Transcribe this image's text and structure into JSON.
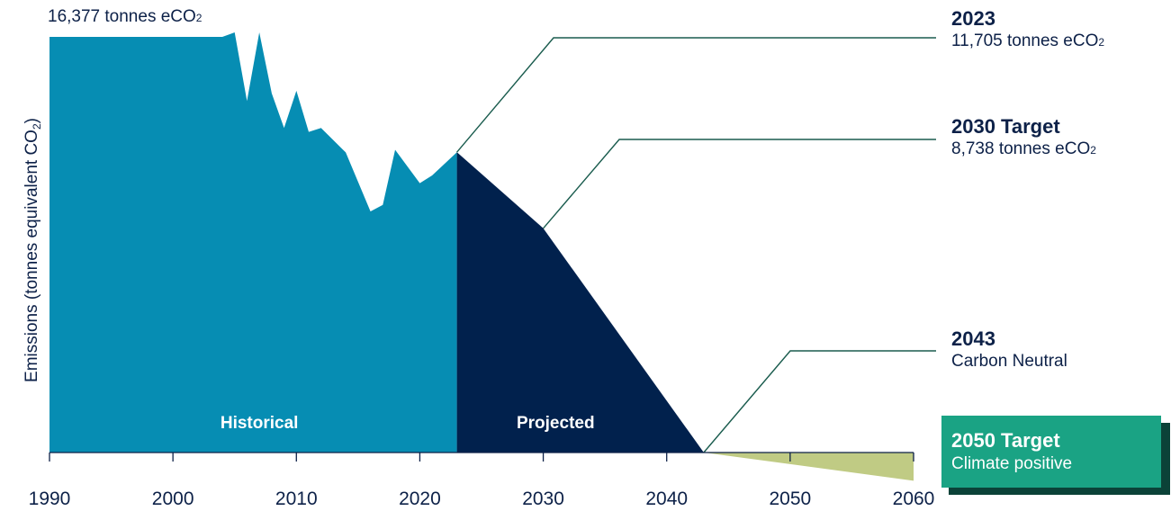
{
  "chart_data": {
    "type": "area",
    "ylabel": "Emissions (tonnes equivalent CO",
    "ylabel_sub": "2",
    "ylabel_end": ")",
    "xlim": [
      1990,
      2060
    ],
    "x_ticks": [
      1990,
      2000,
      2010,
      2020,
      2030,
      2040,
      2050,
      2060
    ],
    "tick_labels": [
      "1990",
      "2000",
      "2010",
      "2020",
      "2030",
      "2040",
      "2050",
      "2060"
    ],
    "ylim": [
      -1250,
      16500
    ],
    "colors": {
      "historical": "#068db3",
      "projected": "#01214d",
      "climate_positive": "#c0cb84",
      "leader": "#1a5c4e",
      "axis": "#0d2148",
      "target_box": "#1aa384",
      "target_box_shadow": "#0b4238"
    },
    "series": [
      {
        "name": "Historical",
        "x": [
          1990,
          2004,
          2005,
          2006,
          2007,
          2008,
          2009,
          2010,
          2011,
          2012,
          2014,
          2016,
          2017,
          2018,
          2020,
          2021,
          2023
        ],
        "values": [
          16200,
          16200,
          16377,
          13700,
          16377,
          14000,
          12650,
          14100,
          12500,
          12650,
          11700,
          9400,
          9650,
          11800,
          10500,
          10800,
          11705
        ]
      },
      {
        "name": "Projected",
        "x": [
          2023,
          2030,
          2043
        ],
        "values": [
          11705,
          8738,
          0
        ]
      },
      {
        "name": "",
        "x": [
          2043,
          2060
        ],
        "values": [
          0,
          -1100
        ]
      }
    ]
  },
  "top_label": {
    "text": "16,377 tonnes eCO",
    "sub": "2"
  },
  "annotations": [
    {
      "year": "2023",
      "text": "11,705 tonnes eCO",
      "sub": "2"
    },
    {
      "year": "2030 Target",
      "text": "8,738 tonnes eCO",
      "sub": "2"
    },
    {
      "year": "2043",
      "text": "Carbon Neutral",
      "sub": ""
    }
  ],
  "target_box": {
    "year": "2050 Target",
    "text": "Climate positive"
  }
}
